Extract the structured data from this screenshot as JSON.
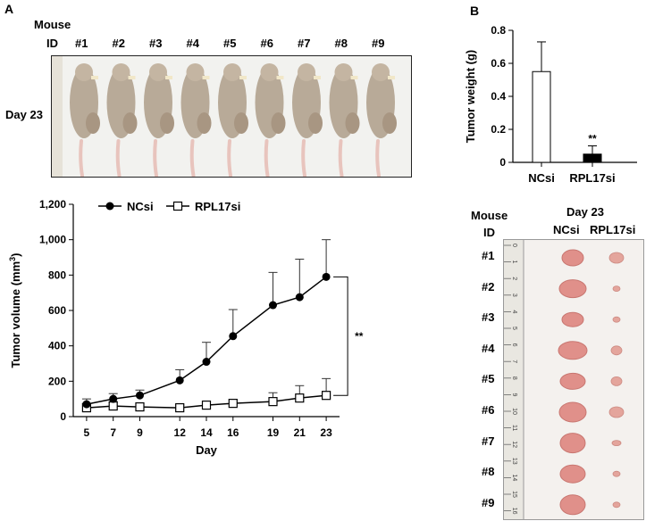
{
  "panel_a": {
    "label": "A",
    "mouse_header_line1": "Mouse",
    "mouse_header_line2": "ID",
    "mouse_ids": [
      "#1",
      "#2",
      "#3",
      "#4",
      "#5",
      "#6",
      "#7",
      "#8",
      "#9"
    ],
    "day_label": "Day 23"
  },
  "panel_b": {
    "label": "B",
    "mouse_header_line1": "Mouse",
    "mouse_header_line2": "ID",
    "day_header": "Day 23",
    "col_ncsi": "NCsi",
    "col_rpl17si": "RPL17si",
    "row_ids": [
      "#1",
      "#2",
      "#3",
      "#4",
      "#5",
      "#6",
      "#7",
      "#8",
      "#9"
    ],
    "ruler_ticks": [
      "0",
      "1",
      "2",
      "3",
      "4",
      "5",
      "6",
      "7",
      "8",
      "9",
      "10",
      "11",
      "12",
      "13",
      "14",
      "15",
      "16"
    ]
  },
  "chart_data": [
    {
      "type": "line",
      "title": "",
      "xlabel": "Day",
      "ylabel": "Tumor volume (mm³)",
      "ylabel_main": "Tumor volume (mm",
      "ylabel_sup": "3",
      "ylabel_end": ")",
      "categories": [
        "5",
        "7",
        "9",
        "12",
        "14",
        "16",
        "19",
        "21",
        "23"
      ],
      "ylim": [
        0,
        1200
      ],
      "yticks": [
        "0",
        "200",
        "400",
        "600",
        "800",
        "1,000",
        "1,200"
      ],
      "ytick_values": [
        0,
        200,
        400,
        600,
        800,
        1000,
        1200
      ],
      "significance": "**",
      "series": [
        {
          "name": "NCsi",
          "marker": "filled-circle",
          "values": [
            70,
            100,
            120,
            205,
            310,
            455,
            630,
            675,
            790
          ],
          "errors": [
            30,
            30,
            30,
            60,
            110,
            150,
            185,
            215,
            210
          ]
        },
        {
          "name": "RPL17si",
          "marker": "open-square",
          "values": [
            50,
            60,
            55,
            50,
            65,
            75,
            85,
            105,
            120
          ],
          "errors": [
            25,
            25,
            15,
            15,
            15,
            20,
            50,
            70,
            95
          ]
        }
      ]
    },
    {
      "type": "bar",
      "title": "",
      "xlabel": "",
      "ylabel": "Tumor weight (g)",
      "categories": [
        "NCsi",
        "RPL17si"
      ],
      "values": [
        0.55,
        0.05
      ],
      "errors": [
        0.18,
        0.05
      ],
      "fills": [
        "#ffffff",
        "#000000"
      ],
      "ylim": [
        0,
        0.8
      ],
      "yticks": [
        "0",
        "0.2",
        "0.4",
        "0.6",
        "0.8"
      ],
      "ytick_values": [
        0,
        0.2,
        0.4,
        0.6,
        0.8
      ],
      "significance": "**"
    }
  ]
}
